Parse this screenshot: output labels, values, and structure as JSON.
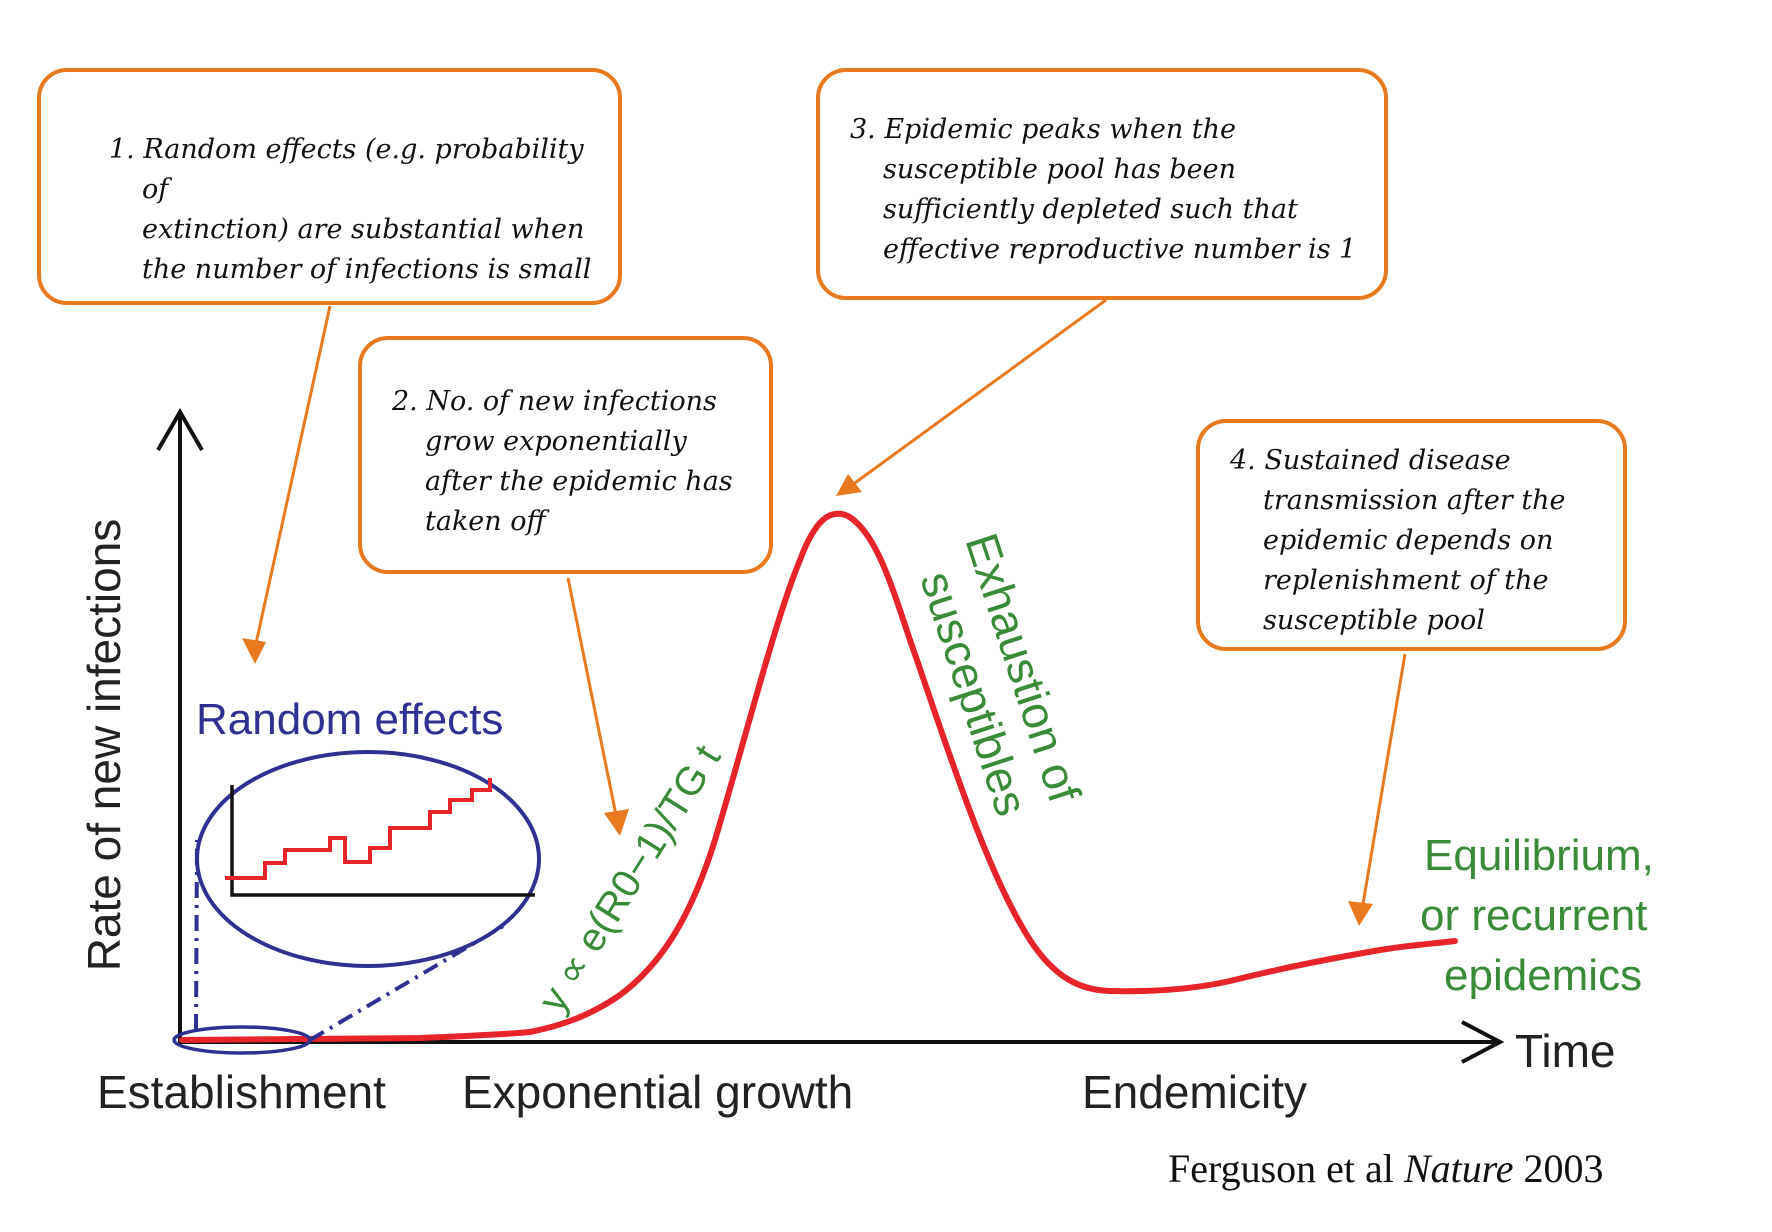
{
  "axes": {
    "y_label": "Rate of new infections",
    "x_label": "Time"
  },
  "phases": {
    "establishment": "Establishment",
    "exponential": "Exponential growth",
    "endemicity": "Endemicity"
  },
  "inset": {
    "title": "Random effects"
  },
  "curve_labels": {
    "growth_formula": "y ∝ e(R0−1)/TG t",
    "exhaustion_line1": "Exhaustion of",
    "exhaustion_line2": "susceptibles",
    "equilibrium_line1": "Equilibrium,",
    "equilibrium_line2": "or recurrent",
    "equilibrium_line3": "epidemics"
  },
  "callouts": {
    "c1": {
      "line1": "1. Random effects (e.g. probability of",
      "line2": "extinction) are substantial when",
      "line3": "the number of infections is small"
    },
    "c2": {
      "line1": "2. No. of new infections",
      "line2": "grow exponentially",
      "line3": "after the epidemic has",
      "line4": "taken off"
    },
    "c3": {
      "line1": "3. Epidemic peaks when the",
      "line2": "susceptible pool has been",
      "line3": "sufficiently depleted such that",
      "line4": "effective reproductive number is 1"
    },
    "c4": {
      "line1": "4. Sustained disease",
      "line2": "transmission after the",
      "line3": "epidemic depends on",
      "line4": "replenishment of the",
      "line5": "susceptible pool"
    }
  },
  "citation": {
    "authors": "Ferguson et al",
    "journal": "Nature",
    "year": "2003"
  },
  "colors": {
    "curve": "#e8242b",
    "callout_border": "#e8791f",
    "arrow": "#e8791f",
    "inset": "#2e3192",
    "green_labels": "#3a8a3a",
    "axis": "#111111"
  }
}
